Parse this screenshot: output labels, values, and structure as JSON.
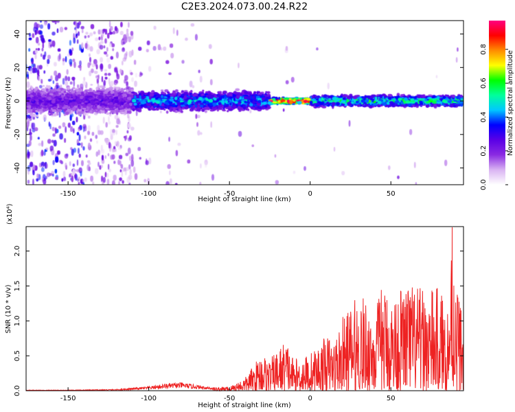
{
  "figure": {
    "title": "C2E3.2024.073.00.24.R22"
  },
  "chart_data": [
    {
      "type": "heatmap",
      "xlabel": "Height of straight line (km)",
      "ylabel": "Frequency (Hz)",
      "xlim": [
        -176,
        95
      ],
      "ylim": [
        -50,
        48
      ],
      "xticks": [
        -150,
        -100,
        -50,
        0,
        50
      ],
      "yticks": [
        -40,
        -20,
        0,
        20,
        40
      ],
      "colorbar": {
        "label": "Normalized spectral amplitude",
        "range": [
          0.0,
          0.97
        ],
        "ticks": [
          0.0,
          0.2,
          0.4,
          0.6,
          0.8
        ],
        "colormap": [
          "#ffffff",
          "#d9b3f2",
          "#8a2be2",
          "#5a00e6",
          "#0000ff",
          "#00c8ff",
          "#00ff9c",
          "#00ff00",
          "#ffff00",
          "#ff8c00",
          "#ff0000",
          "#ff0080"
        ]
      },
      "band": {
        "center_frequency_hz": 0,
        "segments": [
          {
            "x_range": [
              -176,
              -110
            ],
            "description_level": 0.25,
            "halfwidth_hz": 10
          },
          {
            "x_range": [
              -110,
              -25
            ],
            "description_level": 0.45,
            "halfwidth_hz": 7
          },
          {
            "x_range": [
              -25,
              0
            ],
            "description_level": 0.95,
            "halfwidth_hz": 2
          },
          {
            "x_range": [
              0,
              95
            ],
            "description_level": 0.55,
            "halfwidth_hz": 4
          }
        ]
      }
    },
    {
      "type": "line",
      "xlabel": "Height of straight line (km)",
      "ylabel": "SNR (10 * v/v)",
      "y_multiplier": "(x10⁴)",
      "xlim": [
        -176,
        95
      ],
      "ylim": [
        0,
        2.35
      ],
      "xticks": [
        -150,
        -100,
        -50,
        0,
        50
      ],
      "yticks": [
        0.0,
        0.5,
        1.0,
        1.5,
        2.0
      ],
      "series": [
        {
          "color": "#ee2222",
          "envelope": {
            "x": [
              -176,
              -150,
              -120,
              -100,
              -90,
              -80,
              -70,
              -60,
              -50,
              -40,
              -30,
              -25,
              -20,
              -15,
              -10,
              -5,
              0,
              5,
              10,
              15,
              20,
              30,
              40,
              45,
              50,
              60,
              70,
              80,
              85,
              88,
              90,
              95
            ],
            "y": [
              0.01,
              0.01,
              0.02,
              0.06,
              0.1,
              0.12,
              0.08,
              0.05,
              0.06,
              0.2,
              0.55,
              0.45,
              0.6,
              0.75,
              0.45,
              0.5,
              0.55,
              0.65,
              0.8,
              0.75,
              1.05,
              1.4,
              1.2,
              1.55,
              1.35,
              1.6,
              1.45,
              1.5,
              1.25,
              2.35,
              1.72,
              1.1
            ]
          }
        }
      ]
    }
  ]
}
